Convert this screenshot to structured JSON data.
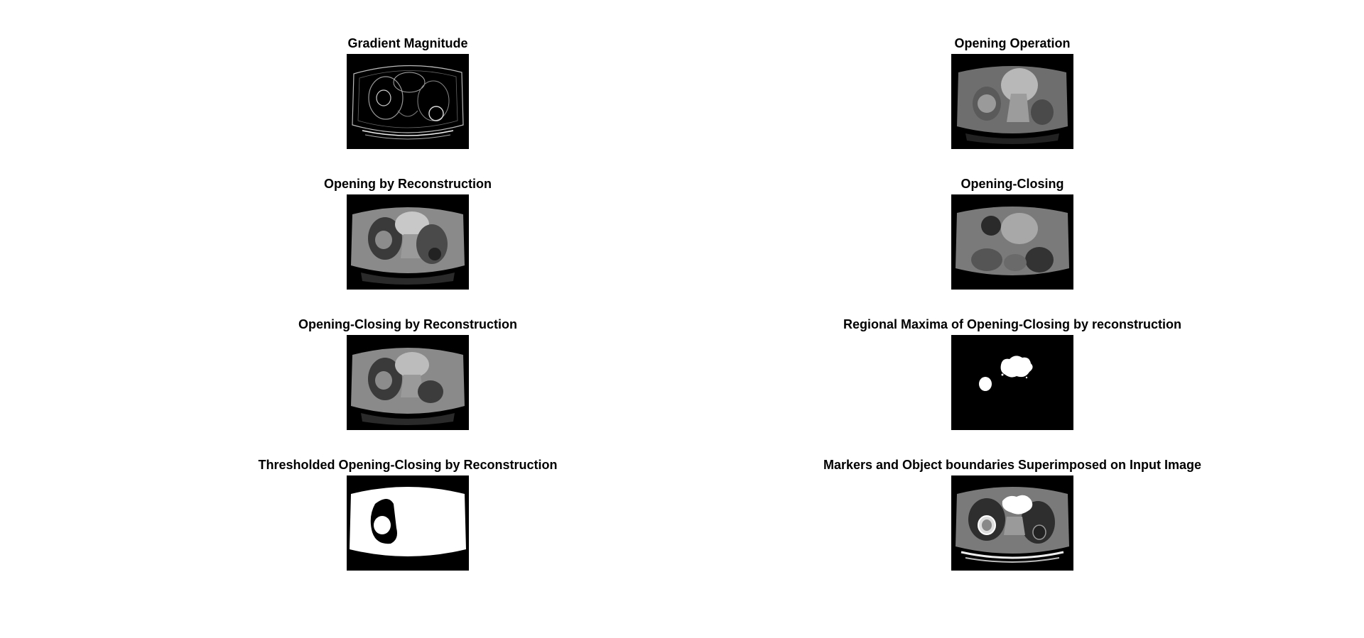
{
  "panels": [
    {
      "title": "Gradient Magnitude"
    },
    {
      "title": "Opening Operation"
    },
    {
      "title": "Opening by Reconstruction"
    },
    {
      "title": "Opening-Closing"
    },
    {
      "title": "Opening-Closing by Reconstruction"
    },
    {
      "title": "Regional Maxima of Opening-Closing by reconstruction"
    },
    {
      "title": "Thresholded Opening-Closing by Reconstruction"
    },
    {
      "title": "Markers and Object boundaries Superimposed on Input Image"
    }
  ]
}
